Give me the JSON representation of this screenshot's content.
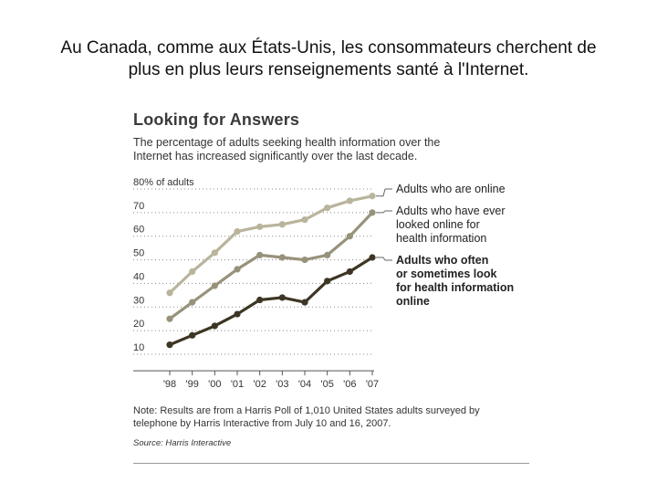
{
  "slide": {
    "title_line1": "Au Canada, comme aux États-Unis, les consommateurs cherchent de",
    "title_line2": "plus en plus leurs renseignements santé à l'Internet."
  },
  "figure": {
    "title": "Looking for Answers",
    "subtitle_line1": "The percentage of adults seeking health information over the",
    "subtitle_line2": "Internet has increased significantly over the last decade.",
    "note_line1": "Note: Results are from a Harris Poll of 1,010 United States adults surveyed by",
    "note_line2": "telephone by Harris Interactive from July 10 and 16, 2007.",
    "source": "Source: Harris Interactive"
  },
  "chart_data": {
    "type": "line",
    "title": "Looking for Answers",
    "x": [
      "'98",
      "'99",
      "'00",
      "'01",
      "'02",
      "'03",
      "'04",
      "'05",
      "'06",
      "'07"
    ],
    "y_ticks": [
      "80% of adults",
      "70",
      "60",
      "50",
      "40",
      "30",
      "20",
      "10"
    ],
    "y_tick_values": [
      80,
      70,
      60,
      50,
      40,
      30,
      20,
      10
    ],
    "ylim": [
      8,
      82
    ],
    "grid": "horizontal dotted",
    "series": [
      {
        "name_lines": [
          "Adults who are online"
        ],
        "bold": false,
        "color": "#b9b49c",
        "values": [
          36,
          45,
          53,
          62,
          64,
          65,
          67,
          72,
          75,
          77
        ]
      },
      {
        "name_lines": [
          "Adults who have ever",
          "looked online for",
          "health information"
        ],
        "bold": false,
        "color": "#97927a",
        "values": [
          25,
          32,
          39,
          46,
          52,
          51,
          50,
          52,
          60,
          70
        ]
      },
      {
        "name_lines": [
          "Adults who often",
          "or sometimes look",
          "for health information",
          "online"
        ],
        "bold": true,
        "color": "#3d3624",
        "values": [
          14,
          18,
          22,
          27,
          33,
          34,
          32,
          41,
          45,
          51
        ]
      }
    ]
  }
}
